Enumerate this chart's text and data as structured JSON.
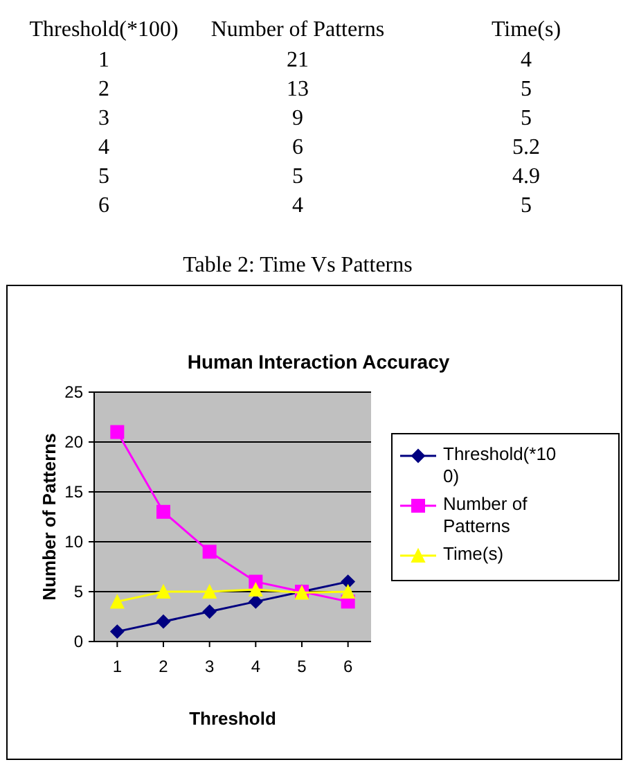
{
  "chart_data": [
    {
      "type": "heatmap",
      "ylabel": "Threshold(*100)",
      "categories": [
        "Number of Patterns",
        "Time(s)"
      ],
      "y_categories": [
        "1",
        "2",
        "3",
        "4",
        "5",
        "6"
      ],
      "cells": [
        [
          21,
          4
        ],
        [
          13,
          5
        ],
        [
          9,
          5
        ],
        [
          6,
          5.2
        ],
        [
          5,
          4.9
        ],
        [
          4,
          5
        ]
      ],
      "color": "#ffffff",
      "data_labels": true,
      "annotations": [
        "Table 2: Time Vs Patterns"
      ]
    },
    {
      "type": "line",
      "title": "Human Interaction Accuracy",
      "xlabel": "Threshold",
      "ylabel": "Number of Patterns",
      "categories": [
        "1",
        "2",
        "3",
        "4",
        "5",
        "6"
      ],
      "series": [
        {
          "name": "Threshold(*100)",
          "color": "#000080",
          "marker": "diamond",
          "values": [
            1,
            2,
            3,
            4,
            5,
            6
          ]
        },
        {
          "name": "Number of Patterns",
          "color": "#ff00ff",
          "marker": "square",
          "values": [
            21,
            13,
            9,
            6,
            5,
            4
          ]
        },
        {
          "name": "Time(s)",
          "color": "#ffff00",
          "marker": "triangle",
          "values": [
            4,
            5,
            5,
            5.2,
            4.9,
            5
          ]
        }
      ],
      "ylim": [
        0,
        25
      ],
      "yticks": [
        0,
        5,
        10,
        15,
        20,
        25
      ],
      "grid": "y",
      "legend": "right"
    }
  ]
}
